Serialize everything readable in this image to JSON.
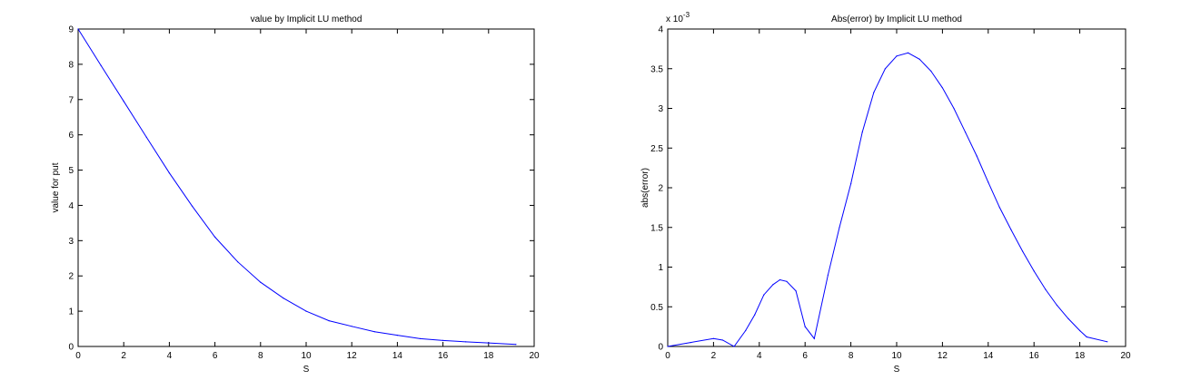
{
  "chart_data": [
    {
      "type": "line",
      "title": "value by Implicit LU method",
      "xlabel": "S",
      "ylabel": "value for put",
      "xlim": [
        0,
        20
      ],
      "ylim": [
        0,
        9
      ],
      "xticks": [
        0,
        2,
        4,
        6,
        8,
        10,
        12,
        14,
        16,
        18,
        20
      ],
      "yticks": [
        0,
        1,
        2,
        3,
        4,
        5,
        6,
        7,
        8,
        9
      ],
      "exponent_label": "",
      "grid": false,
      "color": "#0000ff",
      "series": [
        {
          "x": [
            0,
            1,
            2,
            3,
            4,
            5,
            6,
            7,
            8,
            9,
            10,
            11,
            12,
            13,
            14,
            15,
            16,
            17,
            18,
            19.2
          ],
          "y": [
            9.0,
            7.97,
            6.95,
            5.93,
            4.92,
            3.98,
            3.1,
            2.4,
            1.82,
            1.37,
            1.0,
            0.73,
            0.57,
            0.42,
            0.32,
            0.22,
            0.17,
            0.13,
            0.1,
            0.06
          ]
        }
      ]
    },
    {
      "type": "line",
      "title": "Abs(error) by Implicit LU method",
      "xlabel": "S",
      "ylabel": "abs(error)",
      "xlim": [
        0,
        20
      ],
      "ylim": [
        0,
        4
      ],
      "xticks": [
        0,
        2,
        4,
        6,
        8,
        10,
        12,
        14,
        16,
        18,
        20
      ],
      "yticks": [
        0,
        0.5,
        1,
        1.5,
        2,
        2.5,
        3,
        3.5,
        4
      ],
      "exponent_label": "x 10",
      "exponent_power": "-3",
      "grid": false,
      "color": "#0000ff",
      "series": [
        {
          "x": [
            0,
            1,
            2,
            2.4,
            2.9,
            3.4,
            3.8,
            4.2,
            4.6,
            4.9,
            5.2,
            5.6,
            6.0,
            6.4,
            7.0,
            7.5,
            8.0,
            8.5,
            9.0,
            9.5,
            10.0,
            10.5,
            11.0,
            11.5,
            12.0,
            12.5,
            13.0,
            13.5,
            14.0,
            14.5,
            15.0,
            15.5,
            16.0,
            16.5,
            17.0,
            17.5,
            18.0,
            18.3,
            19.2
          ],
          "y": [
            0,
            0.05,
            0.1,
            0.08,
            0.0,
            0.2,
            0.4,
            0.65,
            0.78,
            0.84,
            0.82,
            0.7,
            0.25,
            0.1,
            0.9,
            1.5,
            2.05,
            2.7,
            3.2,
            3.5,
            3.66,
            3.7,
            3.62,
            3.47,
            3.26,
            3.0,
            2.7,
            2.4,
            2.07,
            1.75,
            1.47,
            1.2,
            0.95,
            0.72,
            0.52,
            0.35,
            0.2,
            0.12,
            0.06
          ]
        }
      ]
    }
  ]
}
